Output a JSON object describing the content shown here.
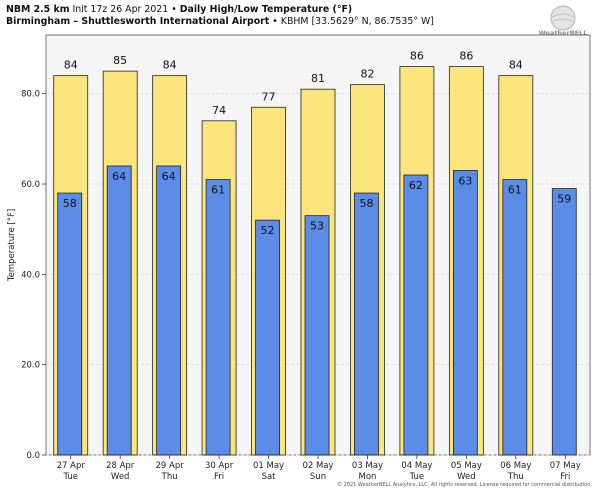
{
  "header": {
    "model": "NBM 2.5 km",
    "init": "Init 17z 26 Apr 2021",
    "separator": "•",
    "product": "Daily High/Low Temperature (°F)",
    "station_name": "Birmingham – Shuttlesworth International Airport",
    "station_info": "KBHM [33.5629° N, 86.7535° W]"
  },
  "logo": {
    "text": "WeatherBELL",
    "icon": "weatherbell-globe-logo"
  },
  "copyright": "© 2021 WeatherBELL Analytics, LLC. All rights reserved. License required for commercial distribution.",
  "colors": {
    "high": "#fde57e",
    "low": "#5b8ce8",
    "edge": "#222222",
    "plot_bg": "#f5f5f5",
    "grid": "#d9d9d9"
  },
  "chart_data": {
    "type": "bar",
    "title": "Daily High/Low Temperature (°F)",
    "ylabel": "Temperature [°F]",
    "xlabel": "",
    "ylim": [
      0,
      93
    ],
    "yticks": [
      0,
      20,
      40,
      60,
      80
    ],
    "ytick_labels": [
      "0.0",
      "20.0",
      "40.0",
      "60.0",
      "80.0"
    ],
    "categories": [
      "27 Apr",
      "28 Apr",
      "29 Apr",
      "30 Apr",
      "01 May",
      "02 May",
      "03 May",
      "04 May",
      "05 May",
      "06 May",
      "07 May"
    ],
    "weekdays": [
      "Tue",
      "Wed",
      "Thu",
      "Fri",
      "Sat",
      "Sun",
      "Mon",
      "Tue",
      "Wed",
      "Thu",
      "Fri"
    ],
    "series": [
      {
        "name": "High",
        "values": [
          84,
          85,
          84,
          74,
          77,
          81,
          82,
          86,
          86,
          84,
          null
        ]
      },
      {
        "name": "Low",
        "values": [
          58,
          64,
          64,
          61,
          52,
          53,
          58,
          62,
          63,
          61,
          59
        ]
      }
    ],
    "grid": true
  }
}
